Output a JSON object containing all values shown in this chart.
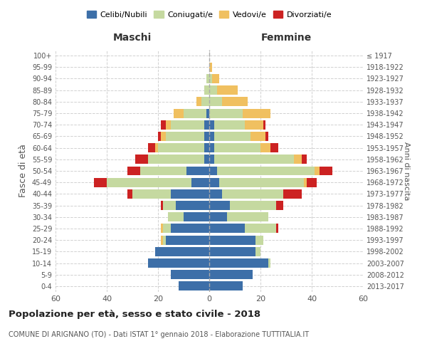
{
  "age_groups": [
    "0-4",
    "5-9",
    "10-14",
    "15-19",
    "20-24",
    "25-29",
    "30-34",
    "35-39",
    "40-44",
    "45-49",
    "50-54",
    "55-59",
    "60-64",
    "65-69",
    "70-74",
    "75-79",
    "80-84",
    "85-89",
    "90-94",
    "95-99",
    "100+"
  ],
  "birth_years": [
    "2013-2017",
    "2008-2012",
    "2003-2007",
    "1998-2002",
    "1993-1997",
    "1988-1992",
    "1983-1987",
    "1978-1982",
    "1973-1977",
    "1968-1972",
    "1963-1967",
    "1958-1962",
    "1953-1957",
    "1948-1952",
    "1943-1947",
    "1938-1942",
    "1933-1937",
    "1928-1932",
    "1923-1927",
    "1918-1922",
    "≤ 1917"
  ],
  "male": {
    "celibi": [
      12,
      15,
      24,
      21,
      17,
      15,
      10,
      13,
      15,
      7,
      9,
      2,
      2,
      2,
      2,
      1,
      0,
      0,
      0,
      0,
      0
    ],
    "coniugati": [
      0,
      0,
      0,
      0,
      1,
      3,
      6,
      5,
      15,
      33,
      18,
      22,
      18,
      15,
      13,
      9,
      3,
      2,
      1,
      0,
      0
    ],
    "vedovi": [
      0,
      0,
      0,
      0,
      1,
      1,
      0,
      0,
      0,
      0,
      0,
      0,
      1,
      2,
      2,
      4,
      2,
      0,
      0,
      0,
      0
    ],
    "divorziati": [
      0,
      0,
      0,
      0,
      0,
      0,
      0,
      1,
      2,
      5,
      5,
      5,
      3,
      1,
      2,
      0,
      0,
      0,
      0,
      0,
      0
    ]
  },
  "female": {
    "nubili": [
      13,
      17,
      23,
      18,
      18,
      14,
      7,
      8,
      5,
      4,
      3,
      2,
      2,
      2,
      2,
      0,
      0,
      0,
      0,
      0,
      0
    ],
    "coniugate": [
      0,
      0,
      1,
      2,
      3,
      12,
      16,
      18,
      24,
      33,
      38,
      31,
      18,
      14,
      12,
      13,
      5,
      3,
      1,
      0,
      0
    ],
    "vedove": [
      0,
      0,
      0,
      0,
      0,
      0,
      0,
      0,
      0,
      1,
      2,
      3,
      4,
      6,
      7,
      11,
      10,
      8,
      3,
      1,
      0
    ],
    "divorziate": [
      0,
      0,
      0,
      0,
      0,
      1,
      0,
      3,
      7,
      4,
      5,
      2,
      3,
      1,
      1,
      0,
      0,
      0,
      0,
      0,
      0
    ]
  },
  "colors": {
    "celibi": "#3d6fa8",
    "coniugati": "#c5d9a0",
    "vedovi": "#f0c060",
    "divorziati": "#cc2222"
  },
  "title": "Popolazione per età, sesso e stato civile - 2018",
  "subtitle": "COMUNE DI ARIGNANO (TO) - Dati ISTAT 1° gennaio 2018 - Elaborazione TUTTITALIA.IT",
  "xlabel_left": "Maschi",
  "xlabel_right": "Femmine",
  "ylabel_left": "Fasce di età",
  "ylabel_right": "Anni di nascita",
  "xlim": 60,
  "legend_labels": [
    "Celibi/Nubili",
    "Coniugati/e",
    "Vedovi/e",
    "Divorziati/e"
  ],
  "bg_color": "#ffffff",
  "grid_color": "#cccccc"
}
